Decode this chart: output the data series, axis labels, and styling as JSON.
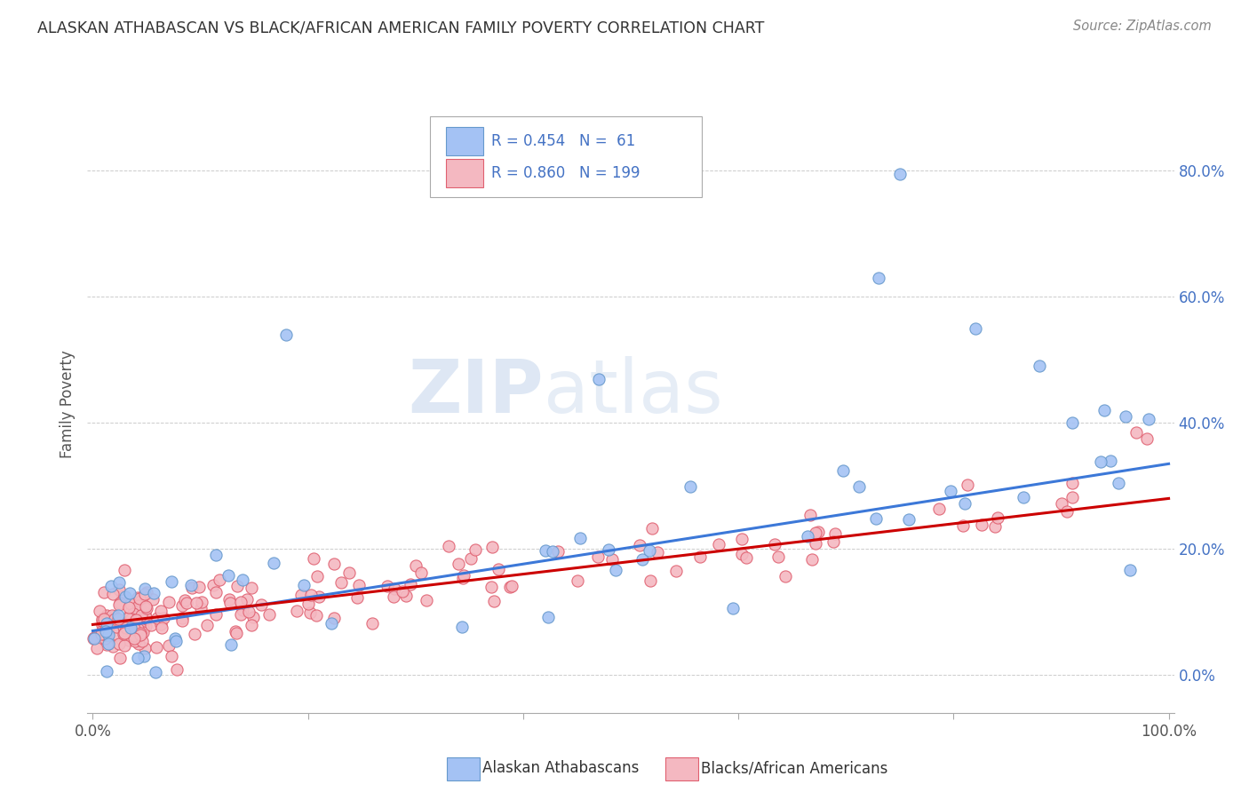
{
  "title": "ALASKAN ATHABASCAN VS BLACK/AFRICAN AMERICAN FAMILY POVERTY CORRELATION CHART",
  "source": "Source: ZipAtlas.com",
  "ylabel": "Family Poverty",
  "watermark_zip": "ZIP",
  "watermark_atlas": "atlas",
  "blue_color": "#a4c2f4",
  "pink_color": "#f4b8c1",
  "blue_line_color": "#3c78d8",
  "pink_line_color": "#cc0000",
  "text_color": "#4472c4",
  "legend_text_color": "#4472c4",
  "background_color": "#ffffff",
  "grid_color": "#cccccc",
  "title_color": "#333333",
  "source_color": "#888888",
  "ylabel_color": "#555555",
  "xtick_color": "#555555",
  "ytick_color": "#4472c4",
  "blue_line_intercept": 0.07,
  "blue_line_slope": 0.265,
  "pink_line_intercept": 0.08,
  "pink_line_slope": 0.2,
  "legend_r1": "R = 0.454",
  "legend_n1": "N =  61",
  "legend_r2": "R = 0.860",
  "legend_n2": "N = 199",
  "label_blue": "Alaskan Athabascans",
  "label_pink": "Blacks/African Americans"
}
